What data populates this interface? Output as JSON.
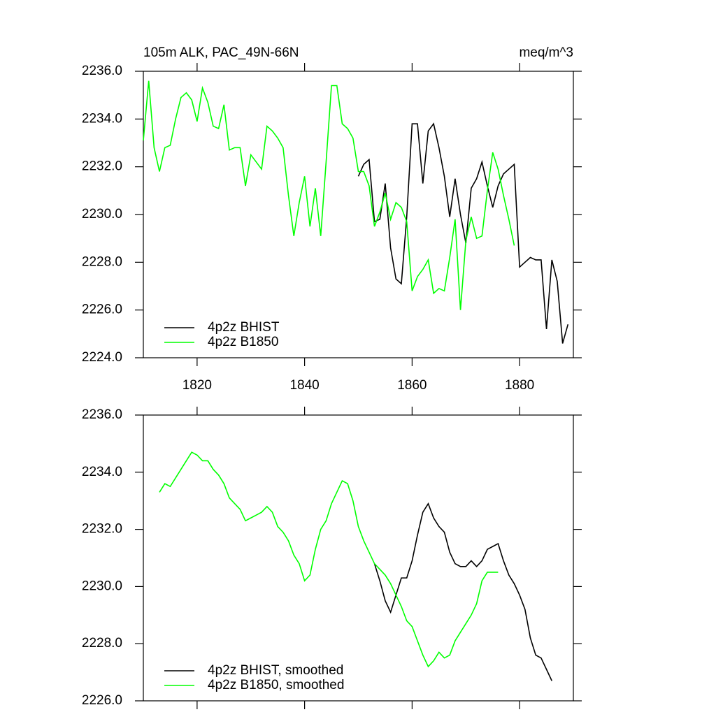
{
  "chart_data": [
    {
      "type": "line",
      "title": "105m ALK, PAC_49N-66N",
      "units": "meq/m^3",
      "x": [
        1810,
        1811,
        1812,
        1813,
        1814,
        1815,
        1816,
        1817,
        1818,
        1819,
        1820,
        1821,
        1822,
        1823,
        1824,
        1825,
        1826,
        1827,
        1828,
        1829,
        1830,
        1831,
        1832,
        1833,
        1834,
        1835,
        1836,
        1837,
        1838,
        1839,
        1840,
        1841,
        1842,
        1843,
        1844,
        1845,
        1846,
        1847,
        1848,
        1849,
        1850,
        1851,
        1852,
        1853,
        1854,
        1855,
        1856,
        1857,
        1858,
        1859,
        1860,
        1861,
        1862,
        1863,
        1864,
        1865,
        1866,
        1867,
        1868,
        1869,
        1870,
        1871,
        1872,
        1873,
        1874,
        1875,
        1876,
        1877,
        1878,
        1879,
        1880,
        1881,
        1882,
        1883,
        1884,
        1885,
        1886,
        1887,
        1888,
        1889
      ],
      "series": [
        {
          "name": "4p2z BHIST",
          "color": "#000000",
          "values": [
            null,
            null,
            null,
            null,
            null,
            null,
            null,
            null,
            null,
            null,
            null,
            null,
            null,
            null,
            null,
            null,
            null,
            null,
            null,
            null,
            null,
            null,
            null,
            null,
            null,
            null,
            null,
            null,
            null,
            null,
            null,
            null,
            null,
            null,
            null,
            null,
            null,
            null,
            null,
            null,
            2231.6,
            2232.1,
            2232.3,
            2229.7,
            2229.8,
            2231.3,
            2228.6,
            2227.3,
            2227.1,
            2229.9,
            2233.8,
            2233.8,
            2231.3,
            2233.5,
            2233.8,
            2232.8,
            2231.6,
            2229.9,
            2231.5,
            2230.0,
            2228.8,
            2231.1,
            2231.5,
            2232.2,
            2231.2,
            2230.3,
            2231.2,
            2231.7,
            2231.9,
            2232.1,
            2227.8,
            2228.0,
            2228.2,
            2228.1,
            2228.1,
            2225.2,
            2228.1,
            2227.2,
            2224.6,
            2225.4
          ]
        },
        {
          "name": "4p2z B1850",
          "color": "#00ff00",
          "values": [
            2233.1,
            2235.6,
            2232.8,
            2231.8,
            2232.8,
            2232.9,
            2234.0,
            2234.9,
            2235.1,
            2234.8,
            2233.9,
            2235.3,
            2234.7,
            2233.7,
            2233.6,
            2234.6,
            2232.7,
            2232.8,
            2232.8,
            2231.2,
            2232.5,
            2232.2,
            2231.9,
            2233.7,
            2233.5,
            2233.2,
            2232.8,
            2230.8,
            2229.1,
            2230.5,
            2231.6,
            2229.5,
            2231.1,
            2229.1,
            2232.2,
            2235.4,
            2235.4,
            2233.8,
            2233.6,
            2233.2,
            2231.8,
            2231.8,
            2231.2,
            2229.5,
            2230.1,
            2230.9,
            2229.8,
            2230.5,
            2230.3,
            2229.7,
            2226.8,
            2227.4,
            2227.7,
            2228.1,
            2226.7,
            2226.9,
            2226.8,
            2228.2,
            2229.8,
            2226.0,
            2228.9,
            2229.9,
            2229.0,
            2229.1,
            2231.0,
            2232.6,
            2231.9,
            2230.8,
            2229.8,
            2228.7,
            null,
            null,
            null,
            null,
            null,
            null,
            null,
            null,
            null,
            null
          ]
        }
      ],
      "xlim": [
        1810,
        1890
      ],
      "xticks": [
        1820,
        1840,
        1860,
        1880
      ],
      "show_xtick_labels": true,
      "ylim": [
        2224,
        2236
      ],
      "yticks": [
        {
          "value": 2224,
          "label": "2224.0"
        },
        {
          "value": 2226,
          "label": "2226.0"
        },
        {
          "value": 2228,
          "label": "2228.0"
        },
        {
          "value": 2230,
          "label": "2230.0"
        },
        {
          "value": 2232,
          "label": "2232.0"
        },
        {
          "value": 2234,
          "label": "2234.0"
        },
        {
          "value": 2236,
          "label": "2236.0"
        }
      ],
      "legend": "lower left",
      "grid": false
    },
    {
      "type": "line",
      "x": [
        1810,
        1811,
        1812,
        1813,
        1814,
        1815,
        1816,
        1817,
        1818,
        1819,
        1820,
        1821,
        1822,
        1823,
        1824,
        1825,
        1826,
        1827,
        1828,
        1829,
        1830,
        1831,
        1832,
        1833,
        1834,
        1835,
        1836,
        1837,
        1838,
        1839,
        1840,
        1841,
        1842,
        1843,
        1844,
        1845,
        1846,
        1847,
        1848,
        1849,
        1850,
        1851,
        1852,
        1853,
        1854,
        1855,
        1856,
        1857,
        1858,
        1859,
        1860,
        1861,
        1862,
        1863,
        1864,
        1865,
        1866,
        1867,
        1868,
        1869,
        1870,
        1871,
        1872,
        1873,
        1874,
        1875,
        1876,
        1877,
        1878,
        1879,
        1880,
        1881,
        1882,
        1883,
        1884,
        1885,
        1886,
        1887,
        1888,
        1889
      ],
      "series": [
        {
          "name": "4p2z BHIST, smoothed",
          "color": "#000000",
          "values": [
            null,
            null,
            null,
            null,
            null,
            null,
            null,
            null,
            null,
            null,
            null,
            null,
            null,
            null,
            null,
            null,
            null,
            null,
            null,
            null,
            null,
            null,
            null,
            null,
            null,
            null,
            null,
            null,
            null,
            null,
            null,
            null,
            null,
            null,
            null,
            null,
            null,
            null,
            null,
            null,
            null,
            null,
            null,
            2230.8,
            2230.2,
            2229.5,
            2229.1,
            2229.7,
            2230.3,
            2230.3,
            2230.9,
            2231.8,
            2232.6,
            2232.9,
            2232.4,
            2232.1,
            2231.9,
            2231.2,
            2230.8,
            2230.7,
            2230.7,
            2230.9,
            2230.7,
            2230.9,
            2231.3,
            2231.4,
            2231.5,
            2230.9,
            2230.4,
            2230.1,
            2229.7,
            2229.2,
            2228.2,
            2227.6,
            2227.5,
            2227.1,
            2226.7,
            null,
            null,
            null
          ]
        },
        {
          "name": "4p2z B1850, smoothed",
          "color": "#00ff00",
          "values": [
            null,
            null,
            null,
            2233.3,
            2233.6,
            2233.5,
            2233.8,
            2234.1,
            2234.4,
            2234.7,
            2234.6,
            2234.4,
            2234.4,
            2234.1,
            2233.9,
            2233.6,
            2233.1,
            2232.9,
            2232.7,
            2232.3,
            2232.4,
            2232.5,
            2232.6,
            2232.8,
            2232.6,
            2232.1,
            2231.9,
            2231.6,
            2231.1,
            2230.8,
            2230.2,
            2230.4,
            2231.3,
            2232.0,
            2232.3,
            2232.9,
            2233.3,
            2233.7,
            2233.6,
            2233.0,
            2232.1,
            2231.6,
            2231.2,
            2230.8,
            2230.6,
            2230.4,
            2230.1,
            2229.7,
            2229.3,
            2228.8,
            2228.6,
            2228.1,
            2227.6,
            2227.2,
            2227.4,
            2227.7,
            2227.5,
            2227.6,
            2228.1,
            2228.4,
            2228.7,
            2229.0,
            2229.4,
            2230.2,
            2230.5,
            2230.5,
            2230.5,
            null,
            null,
            null,
            null,
            null,
            null,
            null,
            null,
            null,
            null,
            null,
            null,
            null
          ]
        }
      ],
      "xlim": [
        1810,
        1890
      ],
      "xticks": [
        1820,
        1840,
        1860,
        1880
      ],
      "show_xtick_labels": false,
      "ylim": [
        2226,
        2236
      ],
      "yticks": [
        {
          "value": 2226,
          "label": "2226.0"
        },
        {
          "value": 2228,
          "label": "2228.0"
        },
        {
          "value": 2230,
          "label": "2230.0"
        },
        {
          "value": 2232,
          "label": "2232.0"
        },
        {
          "value": 2234,
          "label": "2234.0"
        },
        {
          "value": 2236,
          "label": "2236.0"
        }
      ],
      "legend": "lower left",
      "grid": false
    }
  ]
}
